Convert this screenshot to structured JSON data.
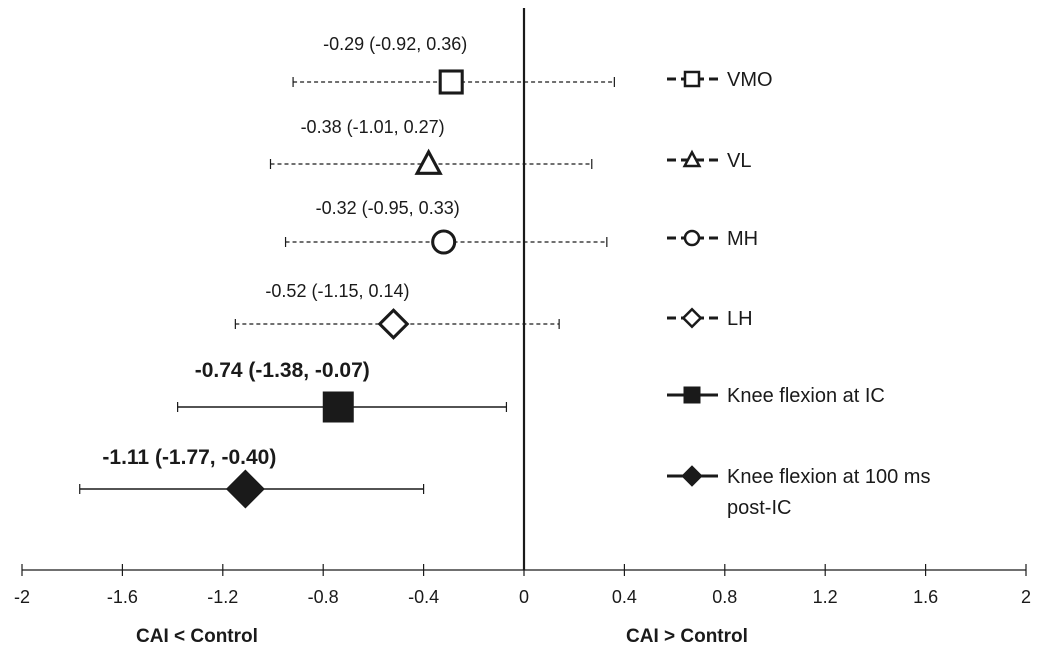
{
  "chart_data": {
    "type": "forest",
    "xlim": [
      -2,
      2
    ],
    "x_ticks": [
      -2,
      -1.6,
      -1.2,
      -0.8,
      -0.4,
      0,
      0.4,
      0.8,
      1.2,
      1.6,
      2
    ],
    "x_tick_labels": [
      "-2",
      "-1.6",
      "-1.2",
      "-0.8",
      "-0.4",
      "0",
      "0.4",
      "0.8",
      "1.2",
      "1.6",
      "2"
    ],
    "reference_line": 0,
    "left_label": "CAI < Control",
    "right_label": "CAI > Control",
    "series": [
      {
        "name": "VMO",
        "estimate": -0.29,
        "lower": -0.92,
        "upper": 0.36,
        "annotation": "-0.29 (-0.92, 0.36)",
        "marker": "square-open",
        "line": "dashed",
        "bold": false
      },
      {
        "name": "VL",
        "estimate": -0.38,
        "lower": -1.01,
        "upper": 0.27,
        "annotation": "-0.38 (-1.01, 0.27)",
        "marker": "triangle-open",
        "line": "dashed",
        "bold": false
      },
      {
        "name": "MH",
        "estimate": -0.32,
        "lower": -0.95,
        "upper": 0.33,
        "annotation": "-0.32 (-0.95, 0.33)",
        "marker": "circle-open",
        "line": "dashed",
        "bold": false
      },
      {
        "name": "LH",
        "estimate": -0.52,
        "lower": -1.15,
        "upper": 0.14,
        "annotation": "-0.52 (-1.15, 0.14)",
        "marker": "diamond-open",
        "line": "dashed",
        "bold": false
      },
      {
        "name": "Knee flexion at IC",
        "estimate": -0.74,
        "lower": -1.38,
        "upper": -0.07,
        "annotation": "-0.74 (-1.38, -0.07)",
        "marker": "square-filled",
        "line": "solid",
        "bold": true
      },
      {
        "name": "Knee flexion at 100 ms post-IC",
        "legend_lines": [
          "Knee flexion at 100 ms",
          "post-IC"
        ],
        "estimate": -1.11,
        "lower": -1.77,
        "upper": -0.4,
        "annotation": "-1.11 (-1.77, -0.40)",
        "marker": "diamond-filled",
        "line": "solid",
        "bold": true
      }
    ]
  }
}
